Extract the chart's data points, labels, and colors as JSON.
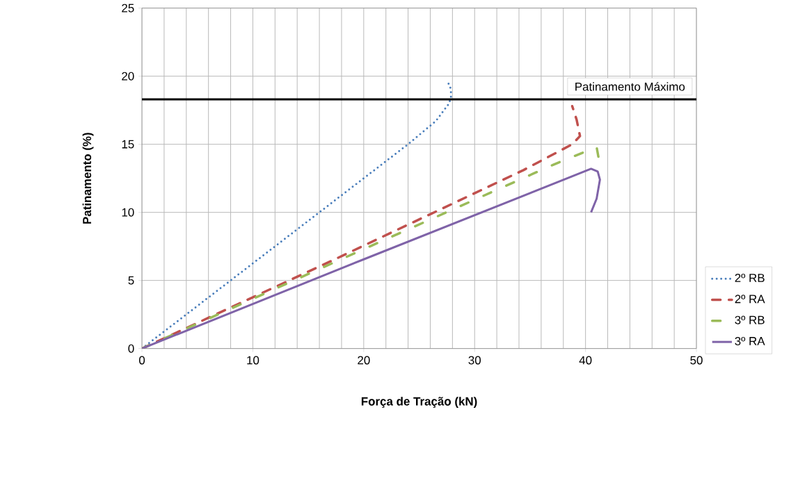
{
  "chart_data": {
    "type": "line",
    "xlabel": "Força de Tração (kN)",
    "ylabel": "Patinamento (%)",
    "xlim": [
      0,
      50
    ],
    "ylim": [
      0,
      25
    ],
    "xticks": [
      0,
      10,
      20,
      30,
      40,
      50
    ],
    "yticks": [
      0,
      5,
      10,
      15,
      20,
      25
    ],
    "grid": true,
    "legend": "right",
    "marker": "none",
    "ref_lines": [
      {
        "axis": "y",
        "value": 18.3,
        "label": "Patinamento Máximo",
        "color": "#000000"
      }
    ],
    "series": [
      {
        "name": "2º RB",
        "color": "#4a7ebb",
        "line_style": "dotted",
        "x": [
          0,
          8,
          16,
          24,
          26.5,
          27.7,
          27.9,
          27.8,
          27.5
        ],
        "values": [
          0,
          5,
          10,
          15,
          16.7,
          18.0,
          18.6,
          19.2,
          19.7
        ]
      },
      {
        "name": "2º RA",
        "color": "#c0504d",
        "line_style": "dashed",
        "x": [
          0,
          17,
          34.4,
          38.8,
          39.5,
          39.2,
          38.8
        ],
        "values": [
          0,
          6.4,
          13.1,
          15.0,
          15.6,
          16.8,
          17.8
        ]
      },
      {
        "name": "3º RB",
        "color": "#9bbb59",
        "line_style": "dashdot",
        "x": [
          0,
          20,
          37.1,
          41.0,
          41.2
        ],
        "values": [
          0,
          7.3,
          13.5,
          14.8,
          13.9
        ]
      },
      {
        "name": "3º RA",
        "color": "#7f63a8",
        "line_style": "solid",
        "x": [
          0,
          20,
          40.5,
          41.1,
          41.3,
          41.0,
          40.5
        ],
        "values": [
          0,
          6.55,
          13.2,
          13.0,
          12.4,
          11.0,
          10.0
        ]
      }
    ]
  }
}
